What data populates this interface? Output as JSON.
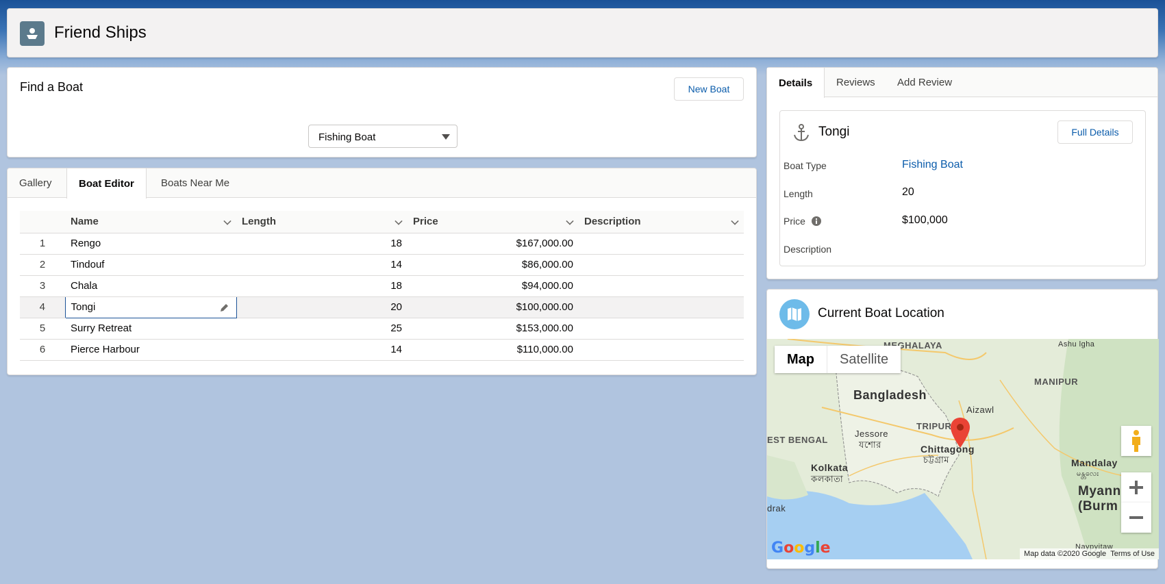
{
  "app": {
    "title": "Friend Ships"
  },
  "find": {
    "title": "Find a Boat",
    "new_boat_label": "New Boat",
    "boat_type_selected": "Fishing Boat"
  },
  "editor": {
    "tabs": [
      {
        "label": "Gallery"
      },
      {
        "label": "Boat Editor"
      },
      {
        "label": "Boats Near Me"
      }
    ],
    "columns": [
      {
        "label": "Name"
      },
      {
        "label": "Length"
      },
      {
        "label": "Price"
      },
      {
        "label": "Description"
      }
    ],
    "rows": [
      {
        "n": "1",
        "name": "Rengo",
        "length": "18",
        "price": "$167,000.00",
        "description": ""
      },
      {
        "n": "2",
        "name": "Tindouf",
        "length": "14",
        "price": "$86,000.00",
        "description": ""
      },
      {
        "n": "3",
        "name": "Chala",
        "length": "18",
        "price": "$94,000.00",
        "description": ""
      },
      {
        "n": "4",
        "name": "Tongi",
        "length": "20",
        "price": "$100,000.00",
        "description": ""
      },
      {
        "n": "5",
        "name": "Surry Retreat",
        "length": "25",
        "price": "$153,000.00",
        "description": ""
      },
      {
        "n": "6",
        "name": "Pierce Harbour",
        "length": "14",
        "price": "$110,000.00",
        "description": ""
      }
    ]
  },
  "details": {
    "tabs": [
      {
        "label": "Details"
      },
      {
        "label": "Reviews"
      },
      {
        "label": "Add Review"
      }
    ],
    "boat_name": "Tongi",
    "full_details_label": "Full Details",
    "fields": {
      "boat_type_label": "Boat Type",
      "boat_type_value": "Fishing Boat",
      "length_label": "Length",
      "length_value": "20",
      "price_label": "Price",
      "price_value": "$100,000",
      "description_label": "Description"
    }
  },
  "location": {
    "title": "Current Boat Location",
    "map_tabs": {
      "map": "Map",
      "satellite": "Satellite"
    },
    "labels": {
      "meghalaya": "MEGHALAYA",
      "manipur": "MANIPUR",
      "bangladesh": "Bangladesh",
      "tripura": "TRIPURA",
      "west_bengal": "EST BENGAL",
      "chittagong": "Chittagong",
      "chittagong_local": "চট্টগ্রাম",
      "jessore": "Jessore",
      "jessore_local": "যশোর",
      "kolkata": "Kolkata",
      "kolkata_local": "কলকাতা",
      "mandalay": "Mandalay",
      "mandalay_local": "မန္တလေး",
      "myanmar": "Myann",
      "burma": "(Burm",
      "aizawl": "Aizawl",
      "ashu": "Ashu lgha",
      "drak": "drak",
      "naypyitaw": "Naypyitaw"
    },
    "attribution": "Map data ©2020 Google",
    "terms": "Terms of Use",
    "google": "Google"
  },
  "colors": {
    "brand": "#0b5cab",
    "pin": "#ea4335"
  }
}
